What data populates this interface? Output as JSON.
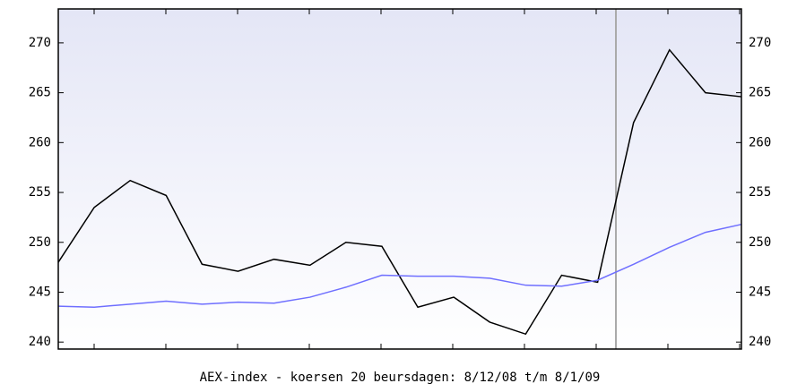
{
  "chart_data": {
    "type": "line",
    "title": "AEX-index - koersen 20 beursdagen: 8/12/08 t/m 8/1/09",
    "categories": [
      null,
      null,
      null,
      null,
      null,
      null,
      null,
      null,
      null,
      null,
      null,
      null,
      null,
      null,
      null,
      null,
      null,
      null,
      null,
      null
    ],
    "series": [
      {
        "color": "#000000",
        "values": [
          248,
          253.5,
          256.2,
          254.7,
          247.8,
          247.1,
          248.3,
          247.7,
          250,
          249.6,
          243.5,
          244.5,
          242,
          240.8,
          246.7,
          246,
          262,
          269.3,
          265,
          264.6
        ]
      },
      {
        "color": "#6f6fff",
        "values": [
          243.6,
          243.5,
          243.8,
          244.1,
          243.8,
          244,
          243.9,
          244.5,
          245.5,
          246.7,
          246.6,
          246.6,
          246.4,
          245.7,
          245.6,
          246.2,
          247.8,
          249.5,
          251,
          251.8
        ]
      }
    ],
    "ylim": [
      239.3,
      273.4
    ],
    "yticks": [
      240,
      245,
      250,
      255,
      260,
      265,
      270
    ]
  }
}
